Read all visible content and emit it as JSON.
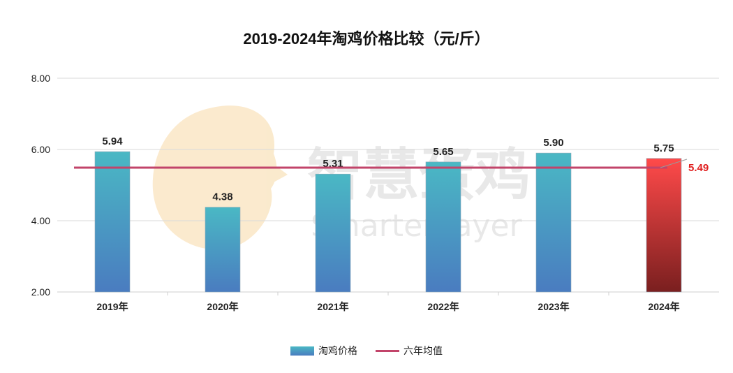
{
  "chart_data": {
    "type": "bar",
    "title": "2019-2024年淘鸡价格比较（元/斤）",
    "categories": [
      "2019年",
      "2020年",
      "2021年",
      "2022年",
      "2023年",
      "2024年"
    ],
    "series": [
      {
        "name": "淘鸡价格",
        "values": [
          5.94,
          4.38,
          5.31,
          5.65,
          5.9,
          5.75
        ]
      },
      {
        "name": "六年均值",
        "type": "line",
        "values": [
          5.49,
          5.49,
          5.49,
          5.49,
          5.49,
          5.49
        ]
      }
    ],
    "data_labels": [
      "5.94",
      "4.38",
      "5.31",
      "5.65",
      "5.90",
      "5.75"
    ],
    "average_label": "5.49",
    "y_ticks": [
      "8.00",
      "6.00",
      "4.00",
      "2.00"
    ],
    "ylim": [
      2,
      8
    ],
    "grid": true,
    "legend_position": "bottom",
    "colors": {
      "bar_top": "#4ab8c4",
      "bar_bottom": "#4a7cc0",
      "highlight_top": "#ff4a4a",
      "highlight_bottom": "#7a1f1f",
      "average_line": "#c2446a",
      "average_label": "#e02020"
    }
  },
  "watermark": {
    "cn": "智慧蛋鸡",
    "en": "Smarter layer"
  }
}
